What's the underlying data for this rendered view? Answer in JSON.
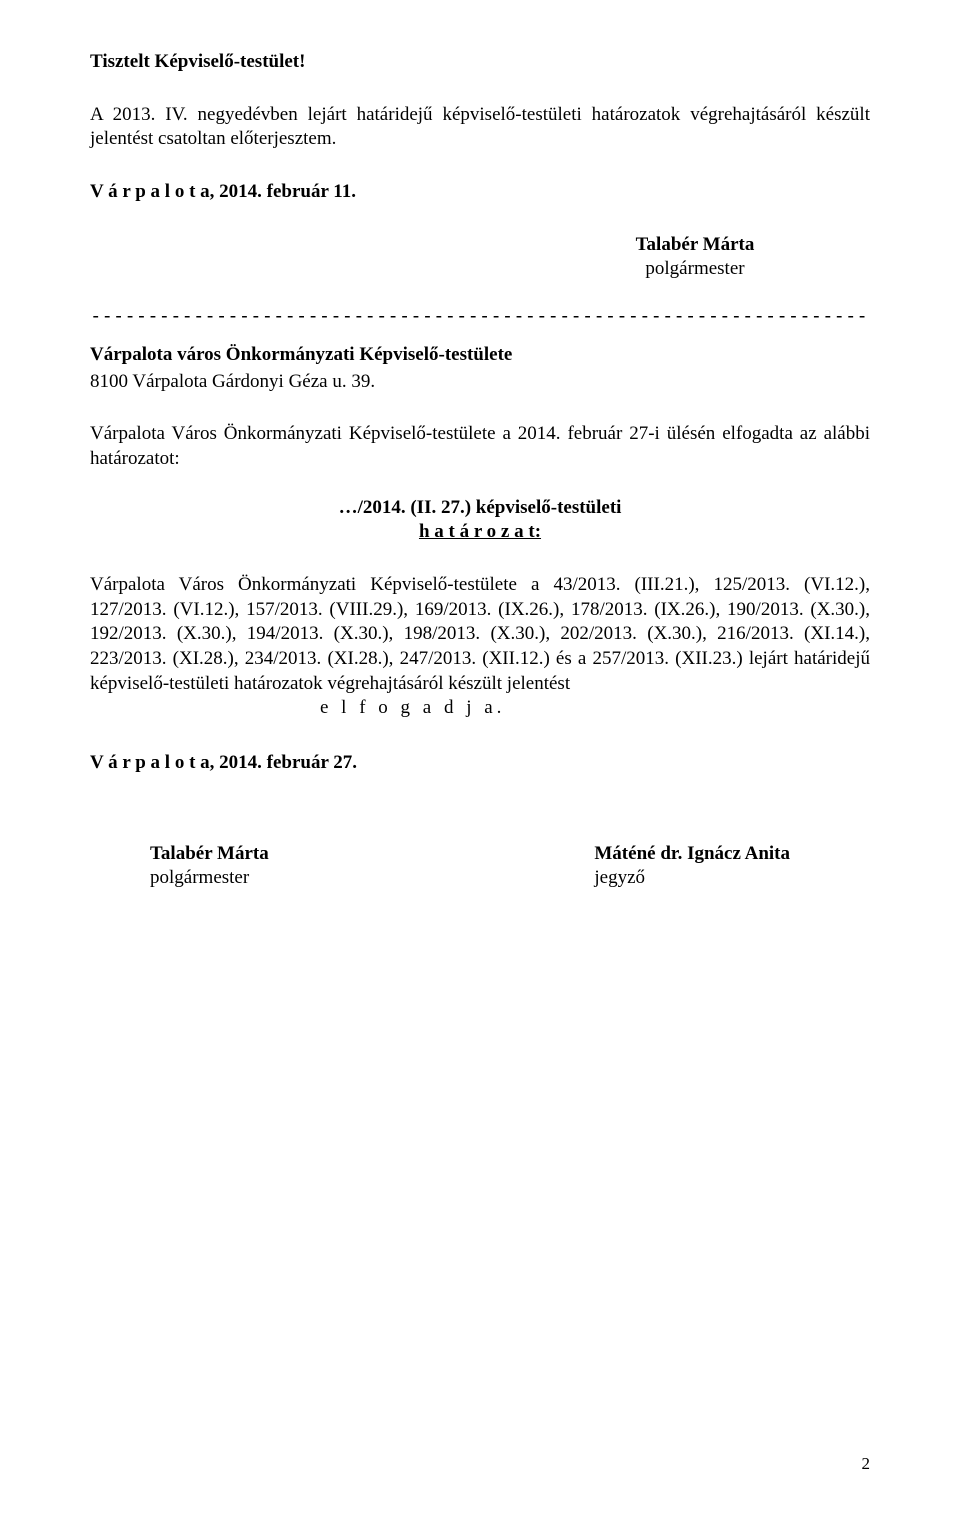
{
  "greeting": "Tisztelt Képviselő-testület!",
  "intro": "A 2013. IV. negyedévben lejárt határidejű képviselő-testületi határozatok végrehajtásáról készült jelentést csatoltan előterjesztem.",
  "date1": "V á r p a l o t a, 2014. február 11.",
  "sig1": {
    "name": "Talabér Márta",
    "role": "polgármester"
  },
  "divider": "--------------------------------------------------------------------------------------------------------------",
  "org": {
    "name": "Várpalota város Önkormányzati Képviselő-testülete",
    "addr": "8100 Várpalota Gárdonyi Géza u. 39."
  },
  "session": "Várpalota Város Önkormányzati Képviselő-testülete a 2014. február 27-i ülésén elfogadta az alábbi határozatot:",
  "resolution": {
    "line1": "…/2014. (II. 27.) képviselő-testületi",
    "line2": "h a t á r o z a t:"
  },
  "body": "Várpalota Város Önkormányzati Képviselő-testülete a 43/2013. (III.21.), 125/2013. (VI.12.), 127/2013. (VI.12.), 157/2013. (VIII.29.), 169/2013. (IX.26.), 178/2013. (IX.26.), 190/2013. (X.30.), 192/2013. (X.30.), 194/2013. (X.30.), 198/2013. (X.30.), 202/2013. (X.30.), 216/2013. (XI.14.), 223/2013. (XI.28.), 234/2013. (XI.28.), 247/2013. (XII.12.) és a 257/2013. (XII.23.) lejárt határidejű képviselő-testületi határozatok végrehajtásáról készült jelentést",
  "adopt": "e l f o g a d j a.",
  "date2": "V á r p a l o t a, 2014. február 27.",
  "sig_left": {
    "name": "Talabér Márta",
    "role": "polgármester"
  },
  "sig_right": {
    "name": "Máténé dr. Ignácz Anita",
    "role": "jegyző"
  },
  "page_number": "2"
}
